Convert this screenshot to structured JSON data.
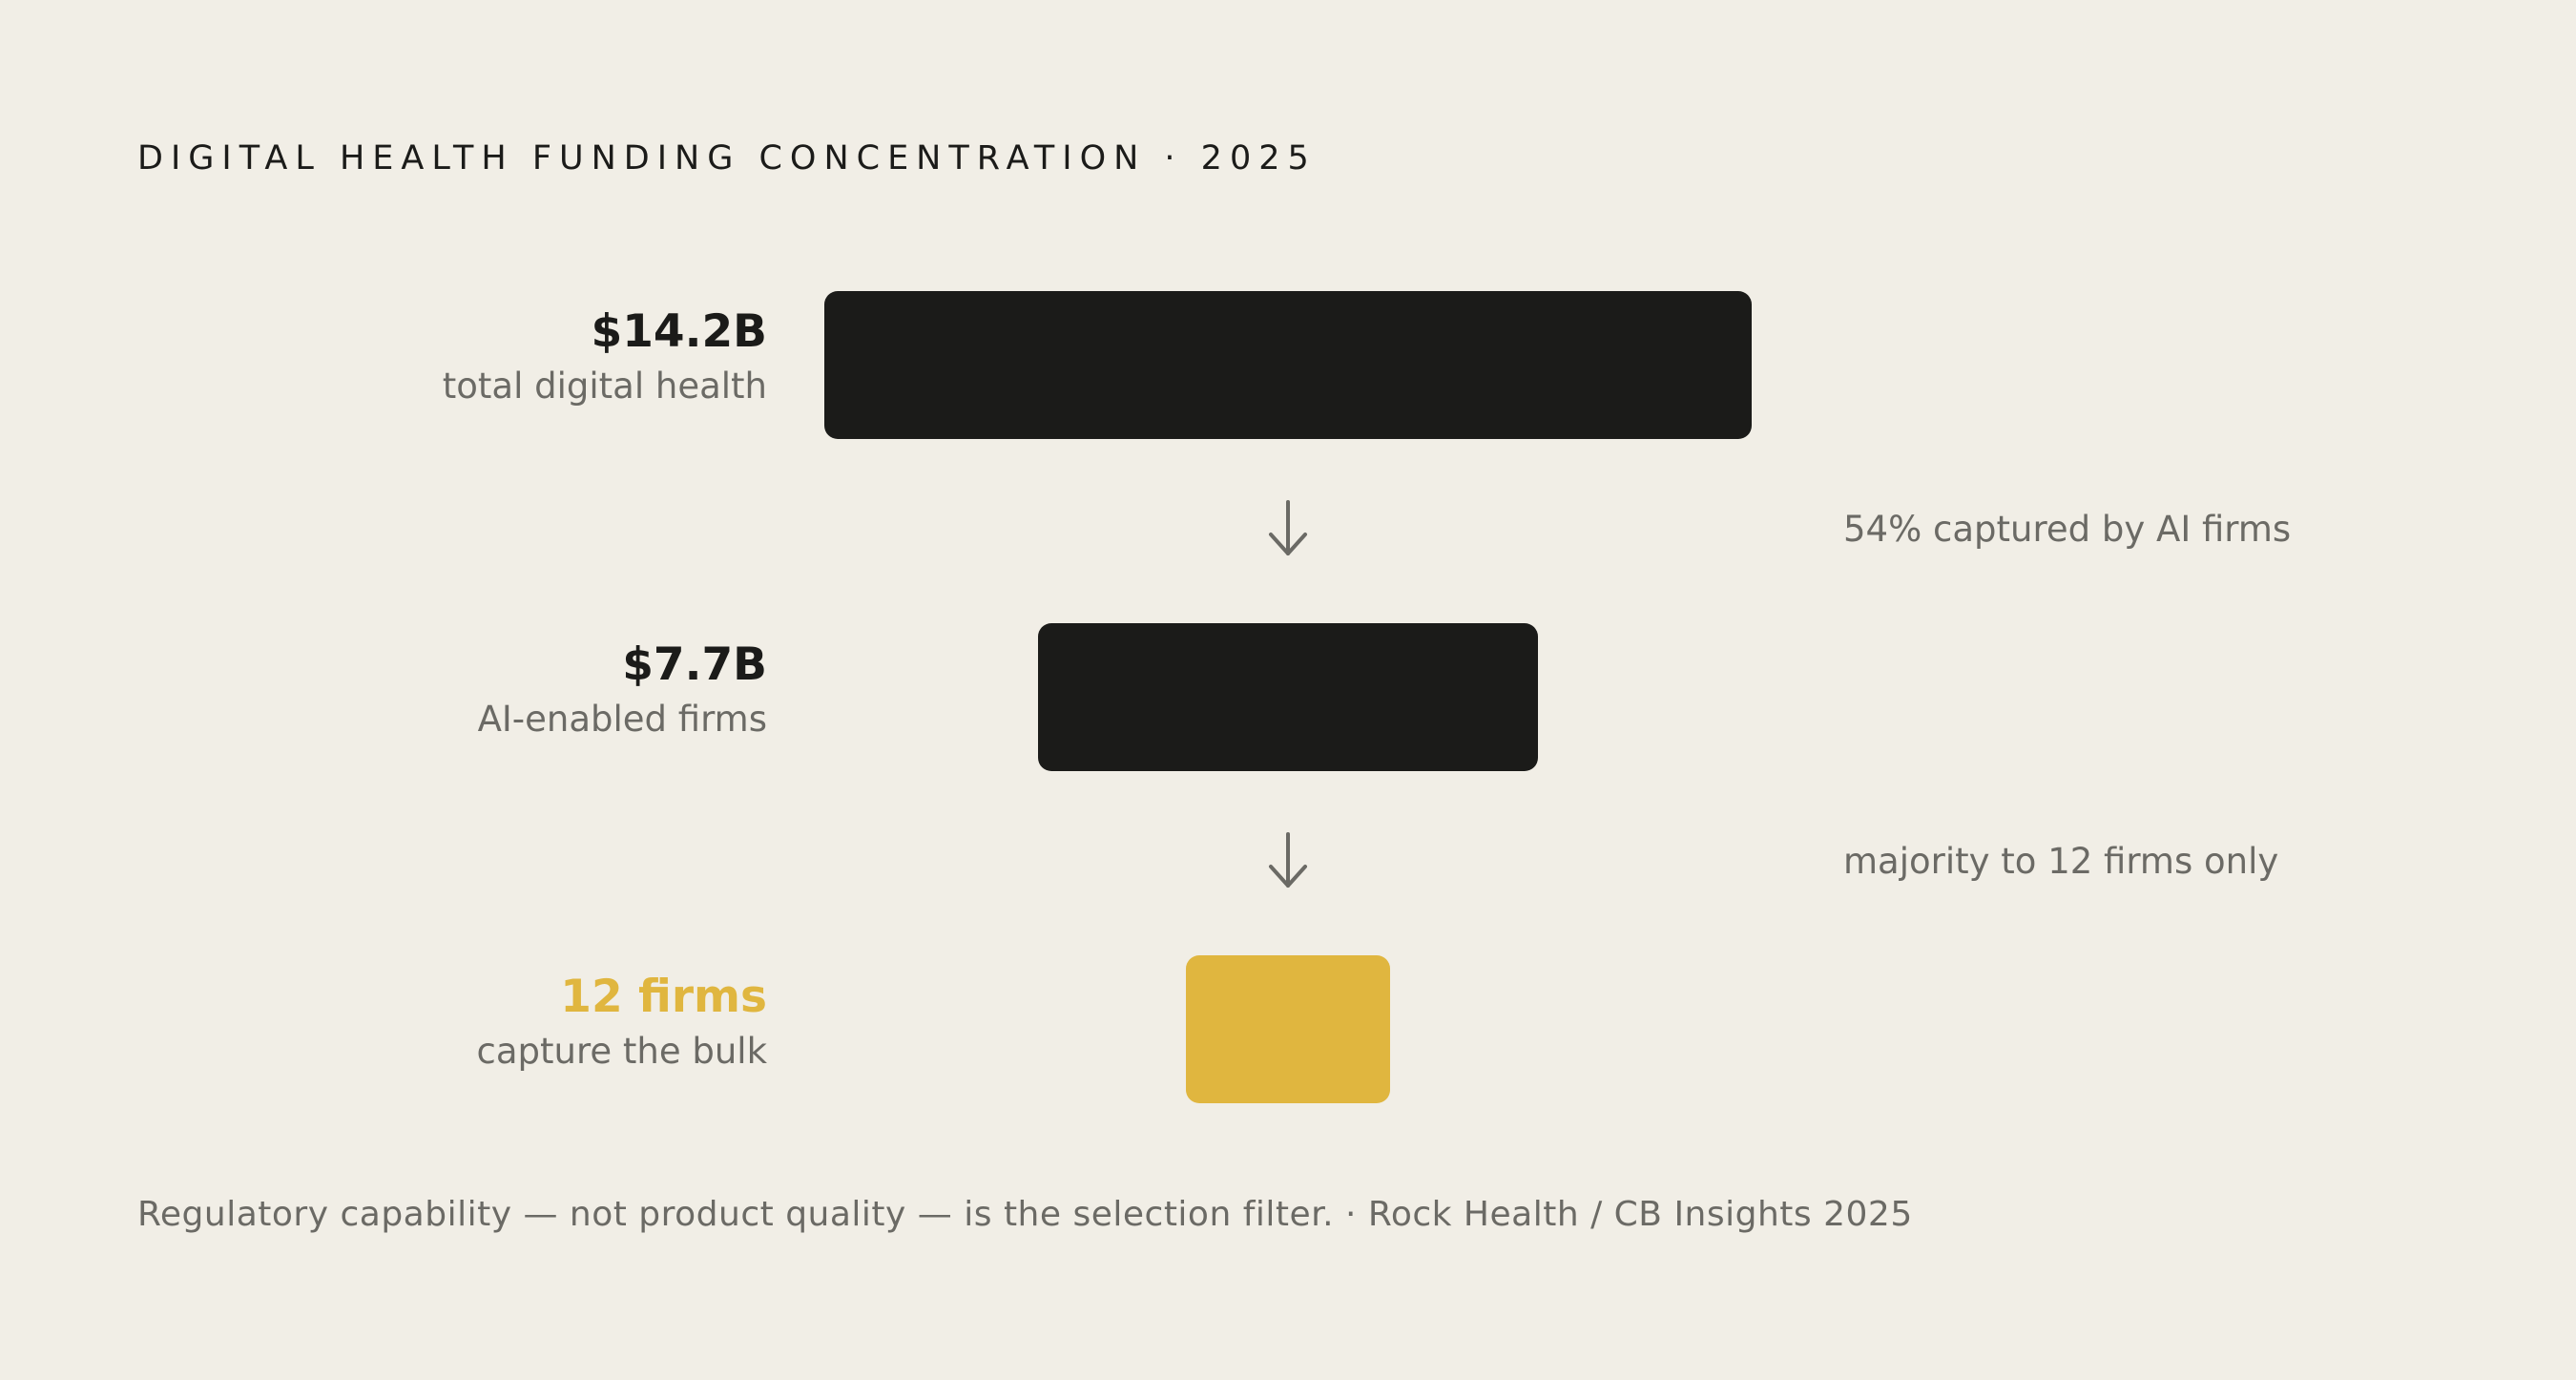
{
  "title": "DIGITAL HEALTH FUNDING CONCENTRATION · 2025",
  "stages": [
    {
      "value": "$14.2B",
      "label": "total digital health",
      "color": "#1b1b19"
    },
    {
      "value": "$7.7B",
      "label": "AI-enabled firms",
      "color": "#1b1b19"
    },
    {
      "value": "12 firms",
      "label": "capture the bulk",
      "color": "#e0b63f"
    }
  ],
  "transitions": [
    {
      "note": "54% captured by AI firms",
      "icon": "arrow-down-icon"
    },
    {
      "note": "majority to 12 firms only",
      "icon": "arrow-down-icon"
    }
  ],
  "footer": "Regulatory capability — not product quality — is the selection filter. · Rock Health / CB Insights 2025",
  "colors": {
    "background": "#f1eee6",
    "dark": "#1b1b19",
    "accent": "#e0b63f",
    "muted": "#6b6a65"
  }
}
